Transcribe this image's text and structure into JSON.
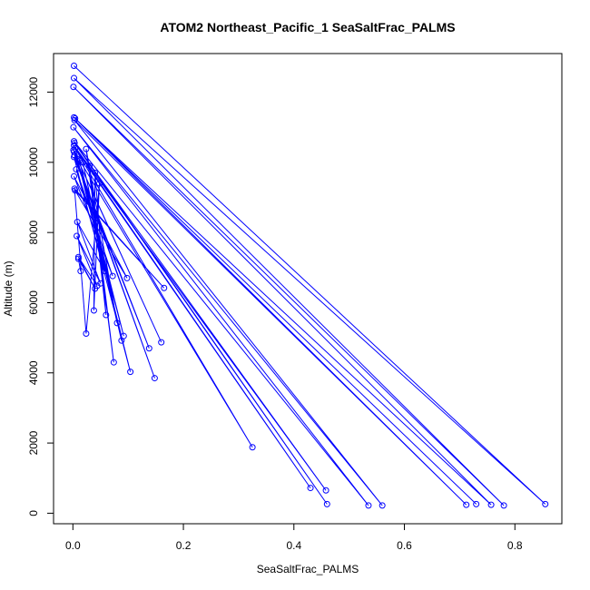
{
  "chart_data": {
    "type": "line",
    "title": "ATOM2 Northeast_Pacific_1 SeaSaltFrac_PALMS",
    "xlabel": "SeaSaltFrac_PALMS",
    "ylabel": "Altitude (m)",
    "xlim": [
      -0.035,
      0.885
    ],
    "ylim": [
      -300,
      13100
    ],
    "xticks": [
      0.0,
      0.2,
      0.4,
      0.6,
      0.8
    ],
    "xtick_labels": [
      "0.0",
      "0.2",
      "0.4",
      "0.6",
      "0.8"
    ],
    "yticks": [
      0,
      2000,
      4000,
      6000,
      8000,
      10000,
      12000
    ],
    "ytick_labels": [
      "0",
      "2000",
      "4000",
      "6000",
      "8000",
      "10000",
      "12000"
    ],
    "grid": false,
    "color": "#0000ff",
    "series": [
      {
        "points": [
          [
            0.002,
            12750
          ],
          [
            0.855,
            260
          ],
          [
            0.002,
            12400
          ],
          [
            0.78,
            220
          ],
          [
            0.001,
            12150
          ],
          [
            0.757,
            240
          ],
          [
            0.002,
            11280
          ],
          [
            0.73,
            260
          ],
          [
            0.004,
            11250
          ],
          [
            0.712,
            240
          ],
          [
            0.003,
            11200
          ],
          [
            0.56,
            220
          ],
          [
            0.001,
            11000
          ],
          [
            0.535,
            220
          ],
          [
            0.002,
            10600
          ],
          [
            0.46,
            260
          ],
          [
            0.003,
            10550
          ],
          [
            0.458,
            650
          ],
          [
            0.002,
            10480
          ],
          [
            0.43,
            720
          ],
          [
            0.004,
            10400
          ],
          [
            0.325,
            1880
          ],
          [
            0.001,
            10350
          ],
          [
            0.16,
            4870
          ],
          [
            0.002,
            10300
          ],
          [
            0.148,
            3850
          ],
          [
            0.003,
            10200
          ],
          [
            0.138,
            4700
          ],
          [
            0.002,
            10150
          ],
          [
            0.104,
            4030
          ],
          [
            0.008,
            10100
          ],
          [
            0.092,
            5050
          ],
          [
            0.012,
            10050
          ],
          [
            0.088,
            4920
          ],
          [
            0.018,
            10000
          ],
          [
            0.08,
            5420
          ],
          [
            0.024,
            10380
          ],
          [
            0.074,
            4300
          ],
          [
            0.03,
            9900
          ],
          [
            0.06,
            5650
          ],
          [
            0.04,
            9700
          ],
          [
            0.038,
            5780
          ],
          [
            0.048,
            9400
          ],
          [
            0.024,
            5120
          ],
          [
            0.003,
            9250
          ],
          [
            0.165,
            6420
          ],
          [
            0.004,
            9200
          ],
          [
            0.098,
            6700
          ],
          [
            0.002,
            9600
          ],
          [
            0.072,
            6760
          ],
          [
            0.006,
            9800
          ],
          [
            0.058,
            6900
          ],
          [
            0.008,
            8300
          ],
          [
            0.05,
            6550
          ],
          [
            0.007,
            7900
          ],
          [
            0.044,
            6480
          ],
          [
            0.01,
            7300
          ],
          [
            0.04,
            6400
          ],
          [
            0.01,
            7250
          ],
          [
            0.014,
            6900
          ]
        ]
      }
    ]
  }
}
